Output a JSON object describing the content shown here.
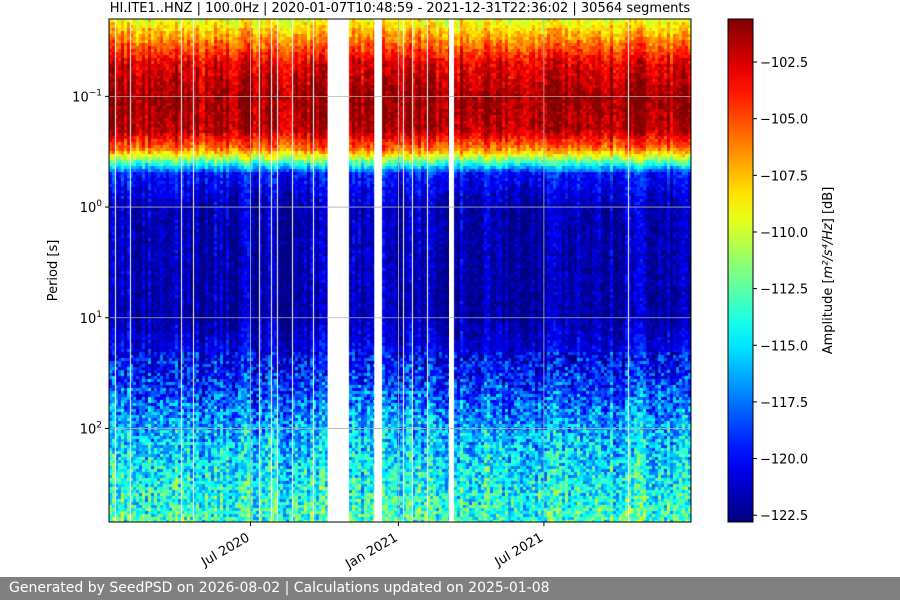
{
  "chart_data": {
    "type": "heatmap",
    "title": "HI.ITE1..HNZ | 100.0Hz | 2020-01-07T10:48:59 - 2021-12-31T22:36:02 | 30564 segments",
    "ylabel": "Period [s]",
    "xlabel": "",
    "x_range": [
      "2020-01-07",
      "2021-12-31"
    ],
    "x_ticks": [
      {
        "date": "2020-07-01",
        "label": "Jul 2020"
      },
      {
        "date": "2021-01-01",
        "label": "Jan 2021"
      },
      {
        "date": "2021-07-01",
        "label": "Jul 2021"
      }
    ],
    "y_scale": "log",
    "y_inverted": true,
    "y_range_s": [
      0.02,
      700
    ],
    "y_ticks": [
      {
        "value": 0.1,
        "base": "10",
        "exp": "−1"
      },
      {
        "value": 1,
        "base": "10",
        "exp": "0"
      },
      {
        "value": 10,
        "base": "10",
        "exp": "1"
      },
      {
        "value": 100,
        "base": "10",
        "exp": "2"
      }
    ],
    "grid": true,
    "colormap": "jet",
    "colorbar": {
      "label_prefix": "Amplitude [",
      "label_units": "m²/s⁴/Hz",
      "label_suffix": "] [dB]",
      "range_db": [
        -122.8,
        -100.6
      ],
      "ticks": [
        "−102.5",
        "−105.0",
        "−107.5",
        "−110.0",
        "−112.5",
        "−115.0",
        "−117.5",
        "−120.0",
        "−122.5"
      ],
      "tick_values": [
        -102.5,
        -105.0,
        -107.5,
        -110.0,
        -112.5,
        -115.0,
        -117.5,
        -120.0,
        -122.5
      ]
    },
    "data_gaps": [
      [
        "2020-10-05",
        "2020-10-28"
      ],
      [
        "2020-12-02",
        "2020-12-09"
      ],
      [
        "2021-03-05",
        "2021-03-10"
      ]
    ],
    "profile_db_by_period": [
      {
        "period_s": 0.02,
        "db": -109.5
      },
      {
        "period_s": 0.05,
        "db": -102.8
      },
      {
        "period_s": 0.1,
        "db": -101.2
      },
      {
        "period_s": 0.2,
        "db": -101.6
      },
      {
        "period_s": 0.3,
        "db": -106.0
      },
      {
        "period_s": 0.4,
        "db": -113.0
      },
      {
        "period_s": 0.5,
        "db": -119.5
      },
      {
        "period_s": 1,
        "db": -121.5
      },
      {
        "period_s": 10,
        "db": -121.8
      },
      {
        "period_s": 30,
        "db": -119.5
      },
      {
        "period_s": 100,
        "db": -116.0
      },
      {
        "period_s": 700,
        "db": -113.0
      }
    ]
  },
  "footer": {
    "text": "Generated by SeedPSD on 2026-08-02 | Calculations updated on 2025-01-08"
  }
}
